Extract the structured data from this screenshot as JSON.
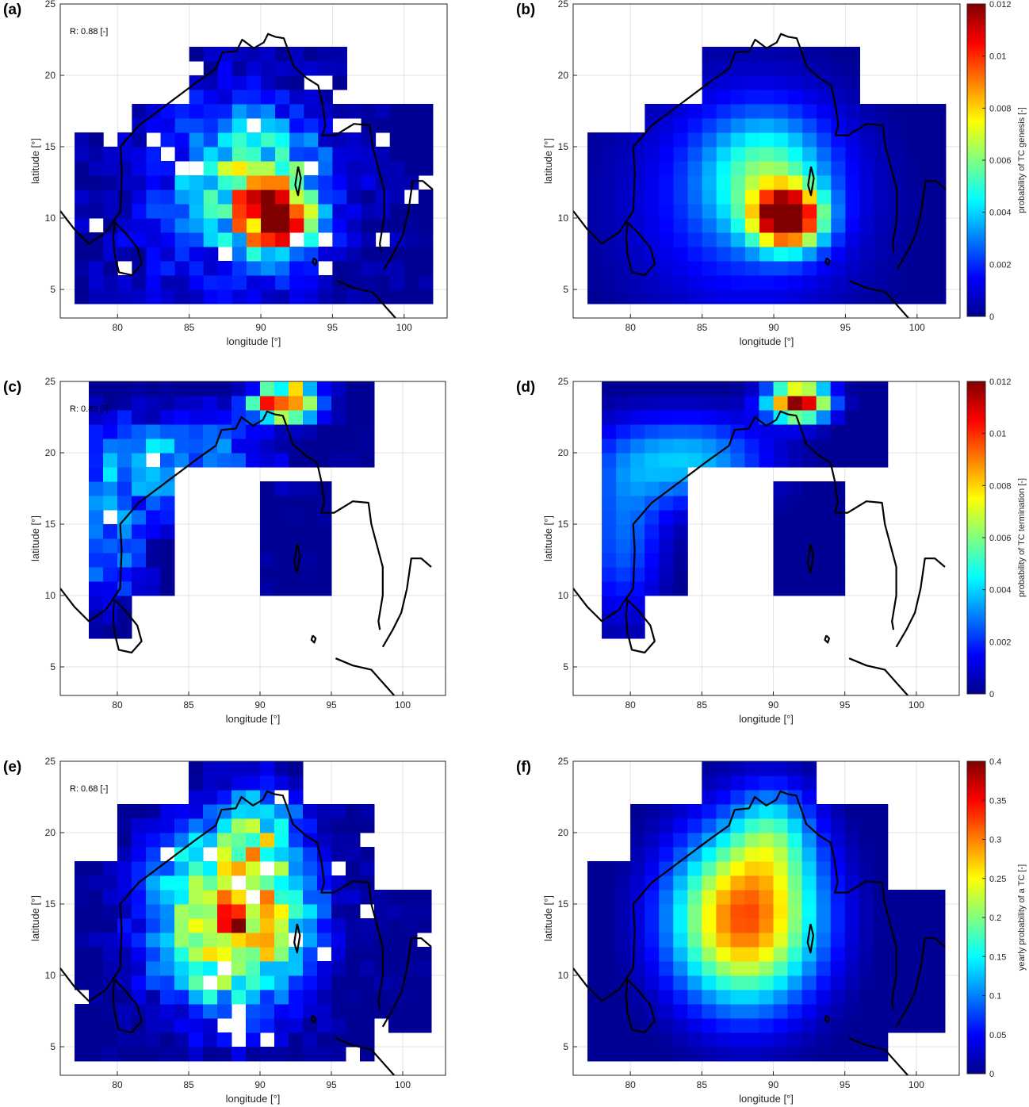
{
  "colors": {
    "background": "#ffffff",
    "grid": "#e3e3e3",
    "axis": "#262626",
    "coast": "#000000"
  },
  "colormap": "jet",
  "chart_data": [
    {
      "id": "a",
      "panel_label": "(a)",
      "type": "heatmap",
      "r_text": "R: 0.88 [-]",
      "xlabel": "longitude [°]",
      "ylabel": "latitude [°]",
      "xlim": [
        76,
        103
      ],
      "ylim": [
        3,
        25
      ],
      "xticks": [
        "80",
        "85",
        "90",
        "95",
        "100"
      ],
      "yticks": [
        "5",
        "10",
        "15",
        "20",
        "25"
      ],
      "grid": true,
      "vmax": 0.012,
      "field": "genesis",
      "noise": 0.35,
      "seed": 11
    },
    {
      "id": "b",
      "panel_label": "(b)",
      "type": "heatmap",
      "xlabel": "longitude [°]",
      "ylabel": "latitude [°]",
      "xlim": [
        76,
        103
      ],
      "ylim": [
        3,
        25
      ],
      "xticks": [
        "80",
        "85",
        "90",
        "95",
        "100"
      ],
      "yticks": [
        "5",
        "10",
        "15",
        "20",
        "25"
      ],
      "grid": true,
      "vmax": 0.012,
      "field": "genesis",
      "noise": 0.0,
      "seed": 12,
      "colorbar": {
        "label": "probability of TC genesis [-]",
        "ticks": [
          "0",
          "0.002",
          "0.004",
          "0.006",
          "0.008",
          "0.01",
          "0.012"
        ],
        "max": 0.012
      }
    },
    {
      "id": "c",
      "panel_label": "(c)",
      "type": "heatmap",
      "r_text": "R: 0.82 [-]",
      "xlabel": "longitude [°]",
      "ylabel": "latitude [°]",
      "xlim": [
        76,
        103
      ],
      "ylim": [
        3,
        25
      ],
      "xticks": [
        "80",
        "85",
        "90",
        "95",
        "100"
      ],
      "yticks": [
        "5",
        "10",
        "15",
        "20",
        "25"
      ],
      "grid": true,
      "vmax": 0.012,
      "field": "termination",
      "noise": 0.35,
      "seed": 13
    },
    {
      "id": "d",
      "panel_label": "(d)",
      "type": "heatmap",
      "xlabel": "longitude [°]",
      "ylabel": "latitude [°]",
      "xlim": [
        76,
        103
      ],
      "ylim": [
        3,
        25
      ],
      "xticks": [
        "80",
        "85",
        "90",
        "95",
        "100"
      ],
      "yticks": [
        "5",
        "10",
        "15",
        "20",
        "25"
      ],
      "grid": true,
      "vmax": 0.012,
      "field": "termination",
      "noise": 0.0,
      "seed": 14,
      "colorbar": {
        "label": "probability of TC termination [-]",
        "ticks": [
          "0",
          "0.002",
          "0.004",
          "0.006",
          "0.008",
          "0.01",
          "0.012"
        ],
        "max": 0.012
      }
    },
    {
      "id": "e",
      "panel_label": "(e)",
      "type": "heatmap",
      "r_text": "R: 0.68 [-]",
      "xlabel": "longitude [°]",
      "ylabel": "latitude [°]",
      "xlim": [
        76,
        103
      ],
      "ylim": [
        3,
        25
      ],
      "xticks": [
        "80",
        "85",
        "90",
        "95",
        "100"
      ],
      "yticks": [
        "5",
        "10",
        "15",
        "20",
        "25"
      ],
      "grid": true,
      "vmax": 0.4,
      "field": "yearly",
      "noise": 0.3,
      "seed": 15
    },
    {
      "id": "f",
      "panel_label": "(f)",
      "type": "heatmap",
      "xlabel": "longitude [°]",
      "ylabel": "latitude [°]",
      "xlim": [
        76,
        103
      ],
      "ylim": [
        3,
        25
      ],
      "xticks": [
        "80",
        "85",
        "90",
        "95",
        "100"
      ],
      "yticks": [
        "5",
        "10",
        "15",
        "20",
        "25"
      ],
      "grid": true,
      "vmax": 0.4,
      "field": "yearly",
      "noise": 0.0,
      "seed": 16,
      "colorbar": {
        "label": "yearly probability of a TC [-]",
        "ticks": [
          "0",
          "0.05",
          "0.1",
          "0.15",
          "0.2",
          "0.25",
          "0.3",
          "0.35",
          "0.4"
        ],
        "max": 0.4
      }
    }
  ]
}
